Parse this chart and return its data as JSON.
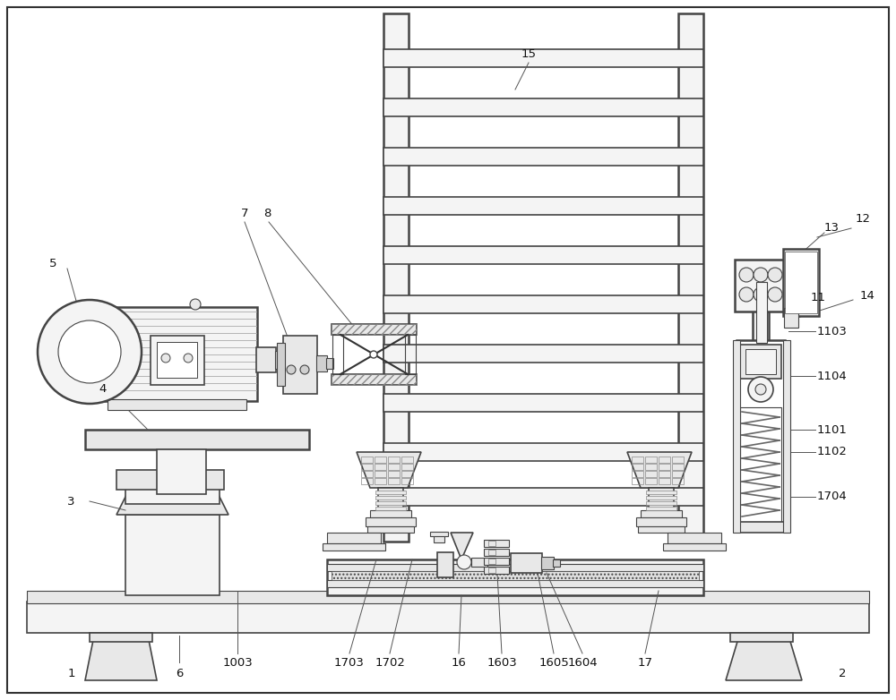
{
  "bg_color": "#ffffff",
  "lc": "#333333",
  "fig_width": 10.0,
  "fig_height": 7.82
}
